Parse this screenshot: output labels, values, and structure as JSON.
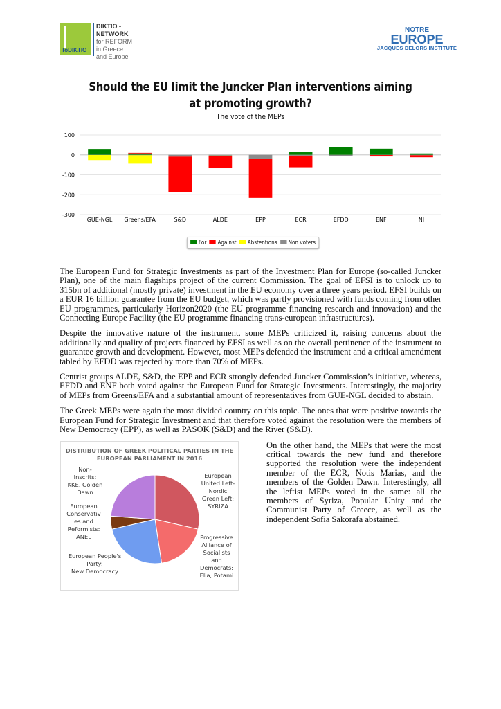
{
  "header": {
    "left_logo": {
      "badge": "ToDIKTIO",
      "lines": [
        "DIKTIO - NETWORK",
        "for REFORM",
        "in Greece",
        "and Europe"
      ]
    },
    "right_logo": {
      "line1": "NOTRE",
      "line2": "EUROPE",
      "line3": "JACQUES DELORS INSTITUTE"
    }
  },
  "title_lines": [
    "Should the EU limit the Juncker Plan interventions aiming",
    "at promoting growth?"
  ],
  "subtitle": "The vote of the MEPs",
  "chart_data": [
    {
      "type": "bar",
      "stacked": true,
      "categories": [
        "GUE-NGL",
        "Greens/EFA",
        "S&D",
        "ALDE",
        "EPP",
        "ECR",
        "EFDD",
        "ENF",
        "NI"
      ],
      "series": [
        {
          "name": "For",
          "color": "#008000",
          "values": [
            30,
            7,
            0,
            0,
            0,
            13,
            40,
            31,
            7
          ]
        },
        {
          "name": "Against",
          "color": "#ff0000",
          "values": [
            0,
            3,
            -178,
            -60,
            -196,
            -58,
            0,
            -7,
            -10
          ]
        },
        {
          "name": "Abstentions",
          "color": "#ffff00",
          "values": [
            -25,
            -42,
            0,
            -3,
            0,
            0,
            0,
            0,
            0
          ]
        },
        {
          "name": "Non voters",
          "color": "#8c8c8c",
          "values": [
            -1,
            -2,
            -9,
            -4,
            -20,
            -4,
            -5,
            -1,
            -2
          ]
        }
      ],
      "yticks": [
        100,
        0,
        -100,
        -200,
        -300
      ],
      "ylim": [
        -300,
        100
      ],
      "grid": true,
      "legend": "bottom"
    },
    {
      "type": "pie",
      "title_lines": [
        "DISTRIBUTION OF GREEK POLITICAL PARTIES IN THE",
        "EUROPEAN PARLIAMENT IN 2016"
      ],
      "slices": [
        {
          "label": [
            "European",
            "United Left-",
            "Nordic",
            "Green Left:",
            "SYRIZA"
          ],
          "value": 6,
          "color": "#d0575f"
        },
        {
          "label": [
            "Progressive",
            "Alliance of",
            "Socialists",
            "and",
            "Democrats:",
            "Elia, Potami"
          ],
          "value": 4,
          "color": "#f46b6b"
        },
        {
          "label": [
            "European People's",
            "Party:",
            "New Democracy"
          ],
          "value": 5,
          "color": "#6f9cf0"
        },
        {
          "label": [
            "European",
            "Conservativ",
            "es and",
            "Reformists:",
            "ANEL"
          ],
          "value": 1,
          "color": "#7a3a12"
        },
        {
          "label": [
            "Non-",
            "Inscrits:",
            "KKE, Golden",
            "Dawn"
          ],
          "value": 5,
          "color": "#b87ddc"
        }
      ]
    }
  ],
  "paragraphs": [
    "The European Fund for Strategic Investments as part of the Investment Plan for Europe (so-called Juncker Plan), one of the main flagships project of the current Commission. The goal of EFSI is to unlock up to 315bn of additional (mostly private) investment in the EU economy over a three years period. EFSI builds on a EUR 16 billion guarantee from the EU budget, which was partly provisioned with funds coming from other EU programmes, particularly Horizon2020 (the EU programme financing research and innovation) and the Connecting Europe Facility (the EU programme financing trans-european infrastructures).",
    "Despite the innovative nature of the instrument, some MEPs criticized it, raising concerns about the additionally and quality of projects financed by EFSI as well as on the overall pertinence of the instrument to guarantee growth and development. However, most MEPs defended the instrument and a critical amendment tabled by EFDD was rejected by more than 70% of MEPs.",
    "Centrist groups ALDE, S&D, the EPP and ECR strongly defended Juncker Commission’s initiative, whereas, EFDD and ENF both voted against the European Fund for Strategic Investments. Interestingly, the majority of MEPs from Greens/EFA and a substantial amount of representatives from GUE-NGL decided to abstain.",
    "The Greek MEPs were again the most divided country on this topic. The ones that were positive towards the European Fund for Strategic Investment and that therefore voted against the resolution were the members of New Democracy (EPP), as well as PASOK (S&D) and the River (S&D).",
    "On the other hand, the MEPs that were the most critical towards the new fund and therefore supported the resolution were the independent member of the ECR, Notis Marias, and the members of the Golden Dawn. Interestingly, all the leftist MEPs voted in the same: all the members of Syriza, Popular Unity and the Communist Party of Greece, as well as the independent Sofia Sakorafa abstained."
  ]
}
